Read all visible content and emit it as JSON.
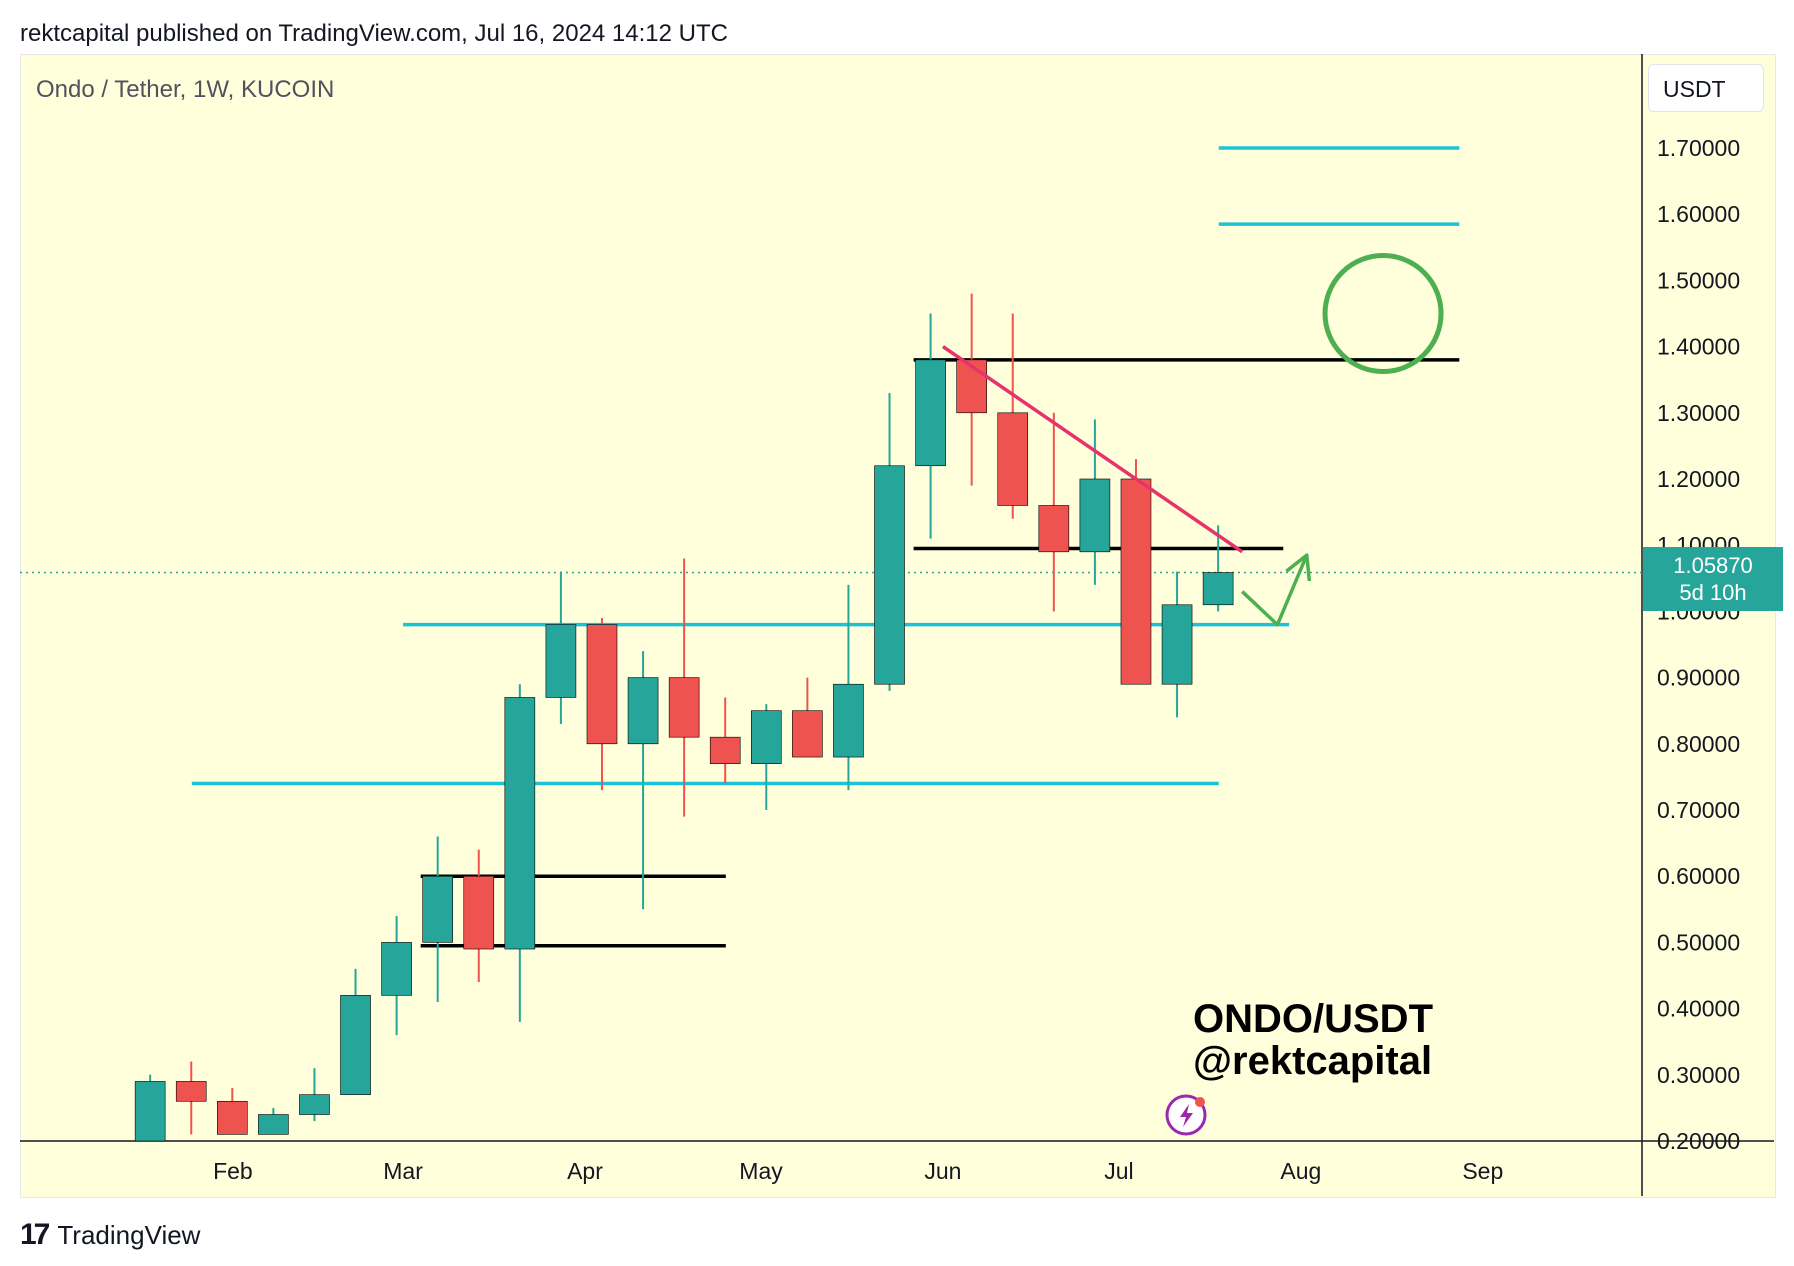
{
  "header": {
    "published": "rektcapital published on TradingView.com, Jul 16, 2024 14:12 UTC"
  },
  "symbol": {
    "title": "Ondo / Tether, 1W, KUCOIN"
  },
  "price_axis": {
    "unit": "USDT"
  },
  "current_price": {
    "value": "1.05870",
    "countdown": "5d 10h"
  },
  "watermark": {
    "line1": "ONDO/USDT",
    "line2": "@rektcapital"
  },
  "footer": {
    "logo_icon": "tradingview-logo-icon",
    "brand": "TradingView"
  },
  "colors": {
    "up": "#26a69a",
    "down": "#ef5350",
    "cyan_levels": "#1cc3d6",
    "trendline": "#e7336b",
    "green_annotation": "#4caf50",
    "background": "#ffffdb"
  },
  "chart_data": {
    "type": "candlestick",
    "title": "Ondo / Tether, 1W, KUCOIN",
    "ylim": [
      0.2,
      1.78
    ],
    "y_ticks": [
      "0.20000",
      "0.30000",
      "0.40000",
      "0.50000",
      "0.60000",
      "0.70000",
      "0.80000",
      "0.90000",
      "1.00000",
      "1.10000",
      "1.20000",
      "1.30000",
      "1.40000",
      "1.50000",
      "1.60000",
      "1.70000"
    ],
    "x_ticks": [
      {
        "label": "Feb",
        "date": "2024-02-01"
      },
      {
        "label": "Mar",
        "date": "2024-03-01"
      },
      {
        "label": "Apr",
        "date": "2024-04-01"
      },
      {
        "label": "May",
        "date": "2024-05-01"
      },
      {
        "label": "Jun",
        "date": "2024-06-01"
      },
      {
        "label": "Jul",
        "date": "2024-07-01"
      },
      {
        "label": "Aug",
        "date": "2024-08-01"
      },
      {
        "label": "Sep",
        "date": "2024-09-01"
      }
    ],
    "candles": [
      {
        "date": "2024-01-15",
        "open": 0.2,
        "high": 0.3,
        "low": 0.2,
        "close": 0.29
      },
      {
        "date": "2024-01-22",
        "open": 0.29,
        "high": 0.32,
        "low": 0.21,
        "close": 0.26
      },
      {
        "date": "2024-01-29",
        "open": 0.26,
        "high": 0.28,
        "low": 0.21,
        "close": 0.21
      },
      {
        "date": "2024-02-05",
        "open": 0.21,
        "high": 0.25,
        "low": 0.21,
        "close": 0.24
      },
      {
        "date": "2024-02-12",
        "open": 0.24,
        "high": 0.31,
        "low": 0.23,
        "close": 0.27
      },
      {
        "date": "2024-02-19",
        "open": 0.27,
        "high": 0.46,
        "low": 0.27,
        "close": 0.42
      },
      {
        "date": "2024-02-26",
        "open": 0.42,
        "high": 0.54,
        "low": 0.36,
        "close": 0.5
      },
      {
        "date": "2024-03-04",
        "open": 0.5,
        "high": 0.66,
        "low": 0.41,
        "close": 0.6
      },
      {
        "date": "2024-03-11",
        "open": 0.6,
        "high": 0.64,
        "low": 0.44,
        "close": 0.49
      },
      {
        "date": "2024-03-18",
        "open": 0.49,
        "high": 0.89,
        "low": 0.38,
        "close": 0.87
      },
      {
        "date": "2024-03-25",
        "open": 0.87,
        "high": 1.06,
        "low": 0.83,
        "close": 0.98
      },
      {
        "date": "2024-04-01",
        "open": 0.98,
        "high": 0.99,
        "low": 0.73,
        "close": 0.8
      },
      {
        "date": "2024-04-08",
        "open": 0.8,
        "high": 0.94,
        "low": 0.55,
        "close": 0.9
      },
      {
        "date": "2024-04-15",
        "open": 0.9,
        "high": 1.08,
        "low": 0.69,
        "close": 0.81
      },
      {
        "date": "2024-04-22",
        "open": 0.81,
        "high": 0.87,
        "low": 0.74,
        "close": 0.77
      },
      {
        "date": "2024-04-29",
        "open": 0.77,
        "high": 0.86,
        "low": 0.7,
        "close": 0.85
      },
      {
        "date": "2024-05-06",
        "open": 0.85,
        "high": 0.9,
        "low": 0.78,
        "close": 0.78
      },
      {
        "date": "2024-05-13",
        "open": 0.78,
        "high": 1.04,
        "low": 0.73,
        "close": 0.89
      },
      {
        "date": "2024-05-20",
        "open": 0.89,
        "high": 1.33,
        "low": 0.88,
        "close": 1.22
      },
      {
        "date": "2024-05-27",
        "open": 1.22,
        "high": 1.45,
        "low": 1.11,
        "close": 1.38
      },
      {
        "date": "2024-06-03",
        "open": 1.38,
        "high": 1.48,
        "low": 1.19,
        "close": 1.3
      },
      {
        "date": "2024-06-10",
        "open": 1.3,
        "high": 1.45,
        "low": 1.14,
        "close": 1.16
      },
      {
        "date": "2024-06-17",
        "open": 1.16,
        "high": 1.3,
        "low": 1.0,
        "close": 1.09
      },
      {
        "date": "2024-06-24",
        "open": 1.09,
        "high": 1.29,
        "low": 1.04,
        "close": 1.2
      },
      {
        "date": "2024-07-01",
        "open": 1.2,
        "high": 1.23,
        "low": 0.89,
        "close": 0.89
      },
      {
        "date": "2024-07-08",
        "open": 0.89,
        "high": 1.06,
        "low": 0.84,
        "close": 1.01
      },
      {
        "date": "2024-07-15",
        "open": 1.01,
        "high": 1.13,
        "low": 1.0,
        "close": 1.0587
      }
    ],
    "horizontal_levels": [
      {
        "price": 1.7,
        "from": "2024-07-18",
        "to": "2024-08-28",
        "color": "cyan"
      },
      {
        "price": 1.585,
        "from": "2024-07-18",
        "to": "2024-08-28",
        "color": "cyan"
      },
      {
        "price": 1.38,
        "from": "2024-05-27",
        "to": "2024-08-28",
        "color": "black"
      },
      {
        "price": 1.095,
        "from": "2024-05-27",
        "to": "2024-07-29",
        "color": "black"
      },
      {
        "price": 0.98,
        "from": "2024-03-01",
        "to": "2024-07-30",
        "color": "cyan"
      },
      {
        "price": 0.74,
        "from": "2024-01-25",
        "to": "2024-07-18",
        "color": "cyan"
      },
      {
        "price": 0.6,
        "from": "2024-03-04",
        "to": "2024-04-25",
        "color": "black"
      },
      {
        "price": 0.495,
        "from": "2024-03-04",
        "to": "2024-04-25",
        "color": "black"
      }
    ],
    "trendline": {
      "from": {
        "date": "2024-06-01",
        "price": 1.4
      },
      "to": {
        "date": "2024-07-22",
        "price": 1.09
      }
    },
    "circle": {
      "date": "2024-08-15",
      "price": 1.45
    },
    "arrow_path": [
      {
        "date": "2024-07-22",
        "price": 1.03
      },
      {
        "date": "2024-07-28",
        "price": 0.98
      },
      {
        "date": "2024-08-02",
        "price": 1.085
      }
    ]
  }
}
